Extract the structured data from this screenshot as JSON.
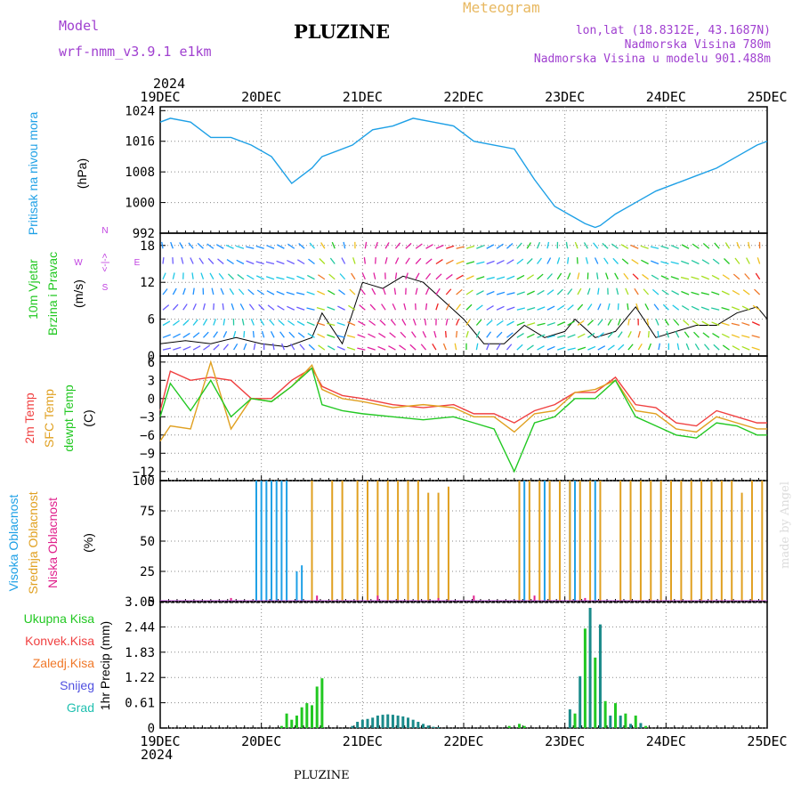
{
  "header": {
    "model_label": "Model",
    "model_value": "wrf-nmm_v3.9.1 e1km",
    "station": "PLUZINE",
    "product": "Meteogram",
    "coords": "lon,lat (18.8312E, 43.1687N)",
    "elevation": "Nadmorska Visina 780m",
    "model_elevation": "Nadmorska Visina u modelu 901.488m",
    "year": "2024",
    "footer_station": "PLUZINE",
    "credit": "made by Angel"
  },
  "colors": {
    "pressure": "#1ea0e6",
    "wind_label": "#22c822",
    "temp_2m": "#f04040",
    "temp_sfc": "#e0a020",
    "dewpoint": "#22c822",
    "cloud_high": "#1ea0e6",
    "cloud_mid": "#e0a020",
    "cloud_low": "#e0208c",
    "precip_total": "#22c822",
    "precip_conv": "#f04040",
    "precip_freezing": "#f07828",
    "precip_snow": "#5050e0",
    "precip_grad": "#20c0b0",
    "wind_dir_label": "#c040e0",
    "credit": "#dcdcdc",
    "coords_text": "#a040d0",
    "product_text": "#e8b860"
  },
  "chart_data": [
    {
      "type": "line",
      "title": "Pritisak na nivou mora",
      "ylabel": "(hPa)",
      "ylim": [
        992,
        1025
      ],
      "yticks": [
        992,
        1000,
        1008,
        1016,
        1024
      ],
      "x_ticks": [
        "19DEC",
        "20DEC",
        "21DEC",
        "22DEC",
        "23DEC",
        "24DEC",
        "25DEC"
      ],
      "grid": true,
      "series": [
        {
          "name": "Pritisak na nivou mora",
          "x": [
            0,
            0.1,
            0.3,
            0.5,
            0.7,
            0.9,
            1.1,
            1.3,
            1.5,
            1.6,
            1.9,
            2.1,
            2.3,
            2.5,
            2.7,
            2.9,
            3.1,
            3.3,
            3.5,
            3.7,
            3.9,
            4.1,
            4.2,
            4.3,
            4.35,
            4.5,
            4.7,
            4.9,
            5.1,
            5.3,
            5.5,
            5.7,
            5.9,
            6.0
          ],
          "values": [
            1021,
            1022,
            1021,
            1017,
            1017,
            1015,
            1012,
            1005,
            1009,
            1012,
            1015,
            1019,
            1020,
            1022,
            1021,
            1020,
            1016,
            1015,
            1014,
            1006,
            999,
            996,
            994.5,
            993.5,
            994,
            997,
            1000,
            1003,
            1005,
            1007,
            1009,
            1012,
            1015,
            1016
          ]
        }
      ]
    },
    {
      "type": "line",
      "title": "10m Vjetar",
      "subtitle": "Brzina i Pravac",
      "ylabel": "(m/s)",
      "ylim": [
        0,
        20
      ],
      "yticks": [
        0,
        6,
        12,
        18
      ],
      "direction_legend": {
        "n": "N",
        "e": "E",
        "w": "W",
        "s": "S",
        "sym": "<-|->"
      },
      "series": [
        {
          "name": "10m Vjetar",
          "x": [
            0,
            0.25,
            0.5,
            0.75,
            1,
            1.25,
            1.5,
            1.6,
            1.8,
            2,
            2.2,
            2.4,
            2.6,
            2.8,
            3,
            3.2,
            3.4,
            3.6,
            3.8,
            4,
            4.1,
            4.3,
            4.5,
            4.7,
            4.9,
            5.1,
            5.3,
            5.5,
            5.7,
            5.9,
            6.0
          ],
          "values": [
            2,
            2.5,
            2,
            3,
            2,
            1.5,
            3,
            7,
            2,
            12,
            11,
            13,
            12,
            9,
            6,
            2,
            2,
            5,
            3,
            4,
            6,
            3,
            4,
            8,
            3,
            4,
            5,
            5,
            7,
            8,
            6
          ]
        }
      ]
    },
    {
      "type": "line",
      "title": "2m Temp",
      "ylabel": "(C)",
      "ylim": [
        -13.5,
        7
      ],
      "yticks": [
        -12,
        -9,
        -6,
        -3,
        0,
        3,
        6
      ],
      "series": [
        {
          "name": "2m Temp",
          "x": [
            0,
            0.1,
            0.3,
            0.5,
            0.7,
            0.9,
            1.1,
            1.3,
            1.5,
            1.6,
            1.8,
            2.0,
            2.3,
            2.6,
            2.9,
            3.1,
            3.3,
            3.5,
            3.7,
            3.9,
            4.1,
            4.3,
            4.5,
            4.7,
            4.9,
            5.1,
            5.3,
            5.5,
            5.7,
            5.9,
            6.0
          ],
          "values": [
            -2,
            4.5,
            3,
            3.5,
            3,
            0,
            0,
            3,
            5,
            2,
            0.5,
            0,
            -1,
            -1.5,
            -1,
            -2.5,
            -2.5,
            -4,
            -2,
            -1,
            1,
            1,
            3.5,
            -1,
            -1.5,
            -4,
            -4.5,
            -2,
            -3,
            -4,
            -4
          ]
        },
        {
          "name": "SFC Temp",
          "x": [
            0,
            0.1,
            0.3,
            0.5,
            0.7,
            0.9,
            1.1,
            1.3,
            1.5,
            1.6,
            1.8,
            2.0,
            2.3,
            2.6,
            2.9,
            3.1,
            3.3,
            3.5,
            3.7,
            3.9,
            4.1,
            4.3,
            4.5,
            4.7,
            4.9,
            5.1,
            5.3,
            5.5,
            5.7,
            5.9,
            6.0
          ],
          "values": [
            -7,
            -4.5,
            -5,
            6,
            -5,
            0,
            -0.5,
            2,
            5.5,
            1.5,
            0,
            -0.5,
            -1.5,
            -1,
            -1.5,
            -3,
            -3,
            -5.5,
            -2.5,
            -2,
            1,
            1.5,
            3,
            -2,
            -2.5,
            -5,
            -5.5,
            -3,
            -4,
            -5,
            -5
          ]
        },
        {
          "name": "dewpt Temp",
          "x": [
            0,
            0.1,
            0.3,
            0.5,
            0.7,
            0.9,
            1.1,
            1.3,
            1.5,
            1.6,
            1.8,
            2.0,
            2.3,
            2.6,
            2.9,
            3.1,
            3.3,
            3.5,
            3.7,
            3.9,
            4.1,
            4.3,
            4.5,
            4.7,
            4.9,
            5.1,
            5.3,
            5.5,
            5.7,
            5.9,
            6.0
          ],
          "values": [
            -3,
            2.5,
            -2,
            3,
            -3,
            0,
            -0.5,
            2,
            5,
            -1,
            -2,
            -2.5,
            -3,
            -3.5,
            -3,
            -4,
            -5,
            -12,
            -4,
            -3,
            0,
            0,
            3,
            -3,
            -4.5,
            -6,
            -6.5,
            -4,
            -4.5,
            -6,
            -6
          ]
        }
      ]
    },
    {
      "type": "bar",
      "title": "Visoka Oblacnost",
      "ylabel": "(%)",
      "ylim": [
        0,
        100
      ],
      "yticks": [
        0,
        25,
        50,
        75,
        100
      ],
      "series": [
        {
          "name": "Visoka Oblacnost",
          "x": [
            0.95,
            1.0,
            1.05,
            1.1,
            1.15,
            1.2,
            1.25,
            1.35,
            1.4,
            3.6,
            3.8,
            4.05,
            4.1,
            4.3
          ],
          "values": [
            100,
            100,
            100,
            100,
            100,
            100,
            100,
            25,
            30,
            100,
            100,
            100,
            100,
            100
          ]
        },
        {
          "name": "Srednja Oblacnost",
          "x": [
            1.5,
            1.7,
            1.8,
            1.95,
            2.05,
            2.15,
            2.25,
            2.35,
            2.45,
            2.55,
            2.65,
            2.75,
            2.85,
            3.55,
            3.65,
            3.75,
            3.85,
            3.95,
            4.05,
            4.15,
            4.25,
            4.35,
            4.55,
            4.65,
            4.75,
            4.85,
            4.95,
            5.05,
            5.15,
            5.25,
            5.35,
            5.45,
            5.55,
            5.65,
            5.75,
            5.85,
            5.95
          ],
          "values": [
            100,
            100,
            100,
            100,
            100,
            100,
            100,
            100,
            100,
            100,
            90,
            90,
            95,
            100,
            100,
            100,
            100,
            100,
            100,
            100,
            100,
            100,
            100,
            100,
            100,
            100,
            100,
            100,
            100,
            100,
            100,
            100,
            100,
            100,
            90,
            100,
            100
          ]
        },
        {
          "name": "Niska Oblacnost",
          "x": [
            0.7,
            1.55,
            2.15,
            2.75,
            3.1,
            3.7,
            4.2
          ],
          "values": [
            3,
            5,
            5,
            3,
            5,
            5,
            3
          ]
        }
      ]
    },
    {
      "type": "bar",
      "title": "Ukupna Kisa",
      "ylabel": "1hr Precip (mm)",
      "ylim": [
        0,
        3.05
      ],
      "yticks": [
        0,
        0.61,
        1.22,
        1.83,
        2.44,
        3.05
      ],
      "legend": [
        "Ukupna Kisa",
        "Konvek.Kisa",
        "Zaledj.Kisa",
        "Snijeg",
        "Grad"
      ],
      "series": [
        {
          "name": "Ukupna Kisa",
          "x": [
            1.2,
            1.25,
            1.3,
            1.35,
            1.4,
            1.45,
            1.5,
            1.55,
            1.6,
            1.9,
            1.95,
            2.0,
            2.05,
            2.1,
            2.15,
            2.2,
            2.25,
            2.3,
            2.35,
            2.4,
            2.45,
            2.5,
            2.55,
            2.6,
            2.65,
            2.7,
            2.75,
            3.45,
            3.55,
            3.6,
            4.05,
            4.1,
            4.15,
            4.2,
            4.25,
            4.3,
            4.35,
            4.4,
            4.45,
            4.5,
            4.55,
            4.6,
            4.65,
            4.7,
            4.75,
            4.8
          ],
          "values": [
            0.05,
            0.35,
            0.2,
            0.3,
            0.5,
            0.6,
            0.55,
            1.0,
            1.2,
            0.05,
            0.15,
            0.2,
            0.22,
            0.25,
            0.3,
            0.32,
            0.33,
            0.32,
            0.3,
            0.28,
            0.25,
            0.2,
            0.15,
            0.1,
            0.06,
            0.03,
            0.02,
            0.05,
            0.1,
            0.05,
            0.45,
            0.35,
            1.25,
            2.4,
            2.9,
            1.7,
            2.5,
            0.65,
            0.3,
            0.6,
            0.3,
            0.35,
            0.1,
            0.3,
            0.12,
            0.05
          ]
        }
      ]
    }
  ]
}
